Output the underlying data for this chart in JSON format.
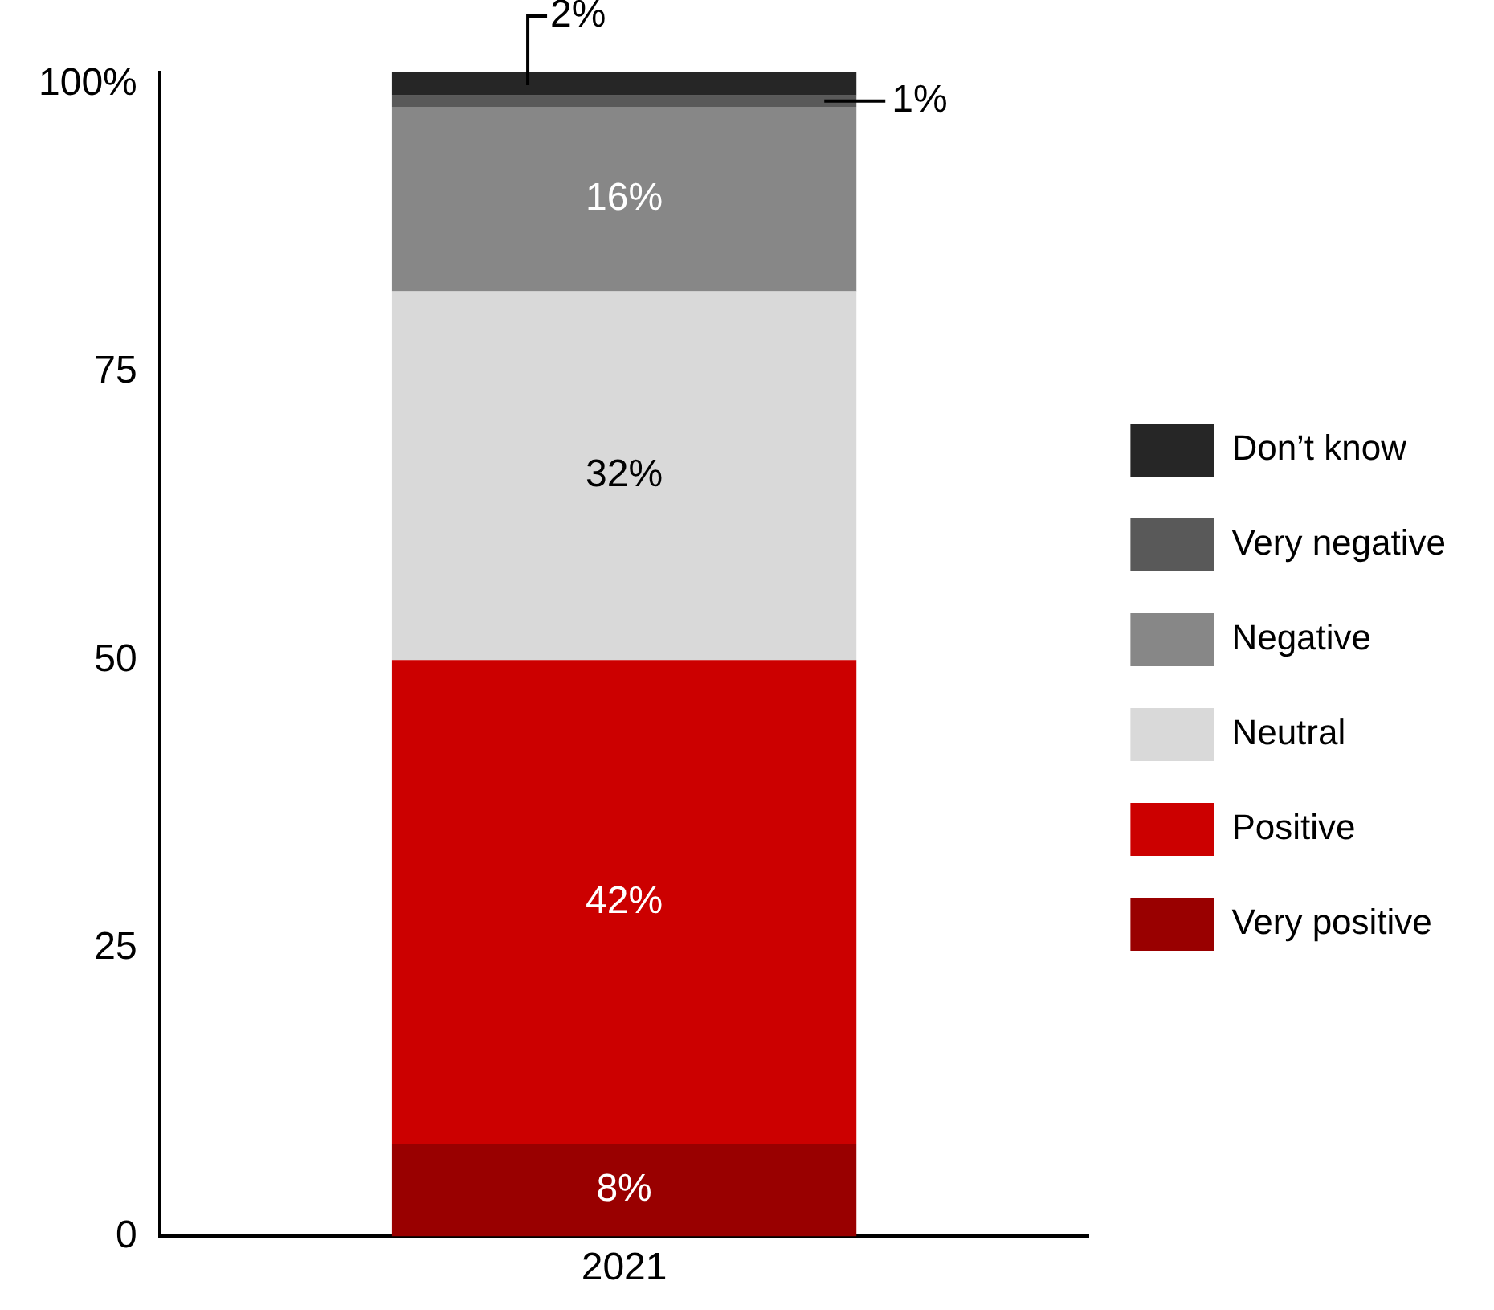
{
  "chart_data": {
    "type": "bar",
    "stacked": true,
    "categories": [
      "2021"
    ],
    "series": [
      {
        "name": "Very positive",
        "color": "#990000",
        "values": [
          8
        ],
        "value_labels": [
          "8%"
        ]
      },
      {
        "name": "Positive",
        "color": "#cc0000",
        "values": [
          42
        ],
        "value_labels": [
          "42%"
        ]
      },
      {
        "name": "Neutral",
        "color": "#d9d9d9",
        "values": [
          32
        ],
        "value_labels": [
          "32%"
        ]
      },
      {
        "name": "Negative",
        "color": "#878787",
        "values": [
          16
        ],
        "value_labels": [
          "16%"
        ]
      },
      {
        "name": "Very negative",
        "color": "#595959",
        "values": [
          1
        ],
        "value_labels": [
          "1%"
        ]
      },
      {
        "name": "Don’t know",
        "color": "#262626",
        "values": [
          2
        ],
        "value_labels": [
          "2%"
        ]
      }
    ],
    "ylim": [
      0,
      101
    ],
    "yticks": [
      0,
      25,
      50,
      75,
      {
        "value": 100,
        "label": "100%"
      }
    ],
    "grid": false,
    "legend": "right"
  }
}
